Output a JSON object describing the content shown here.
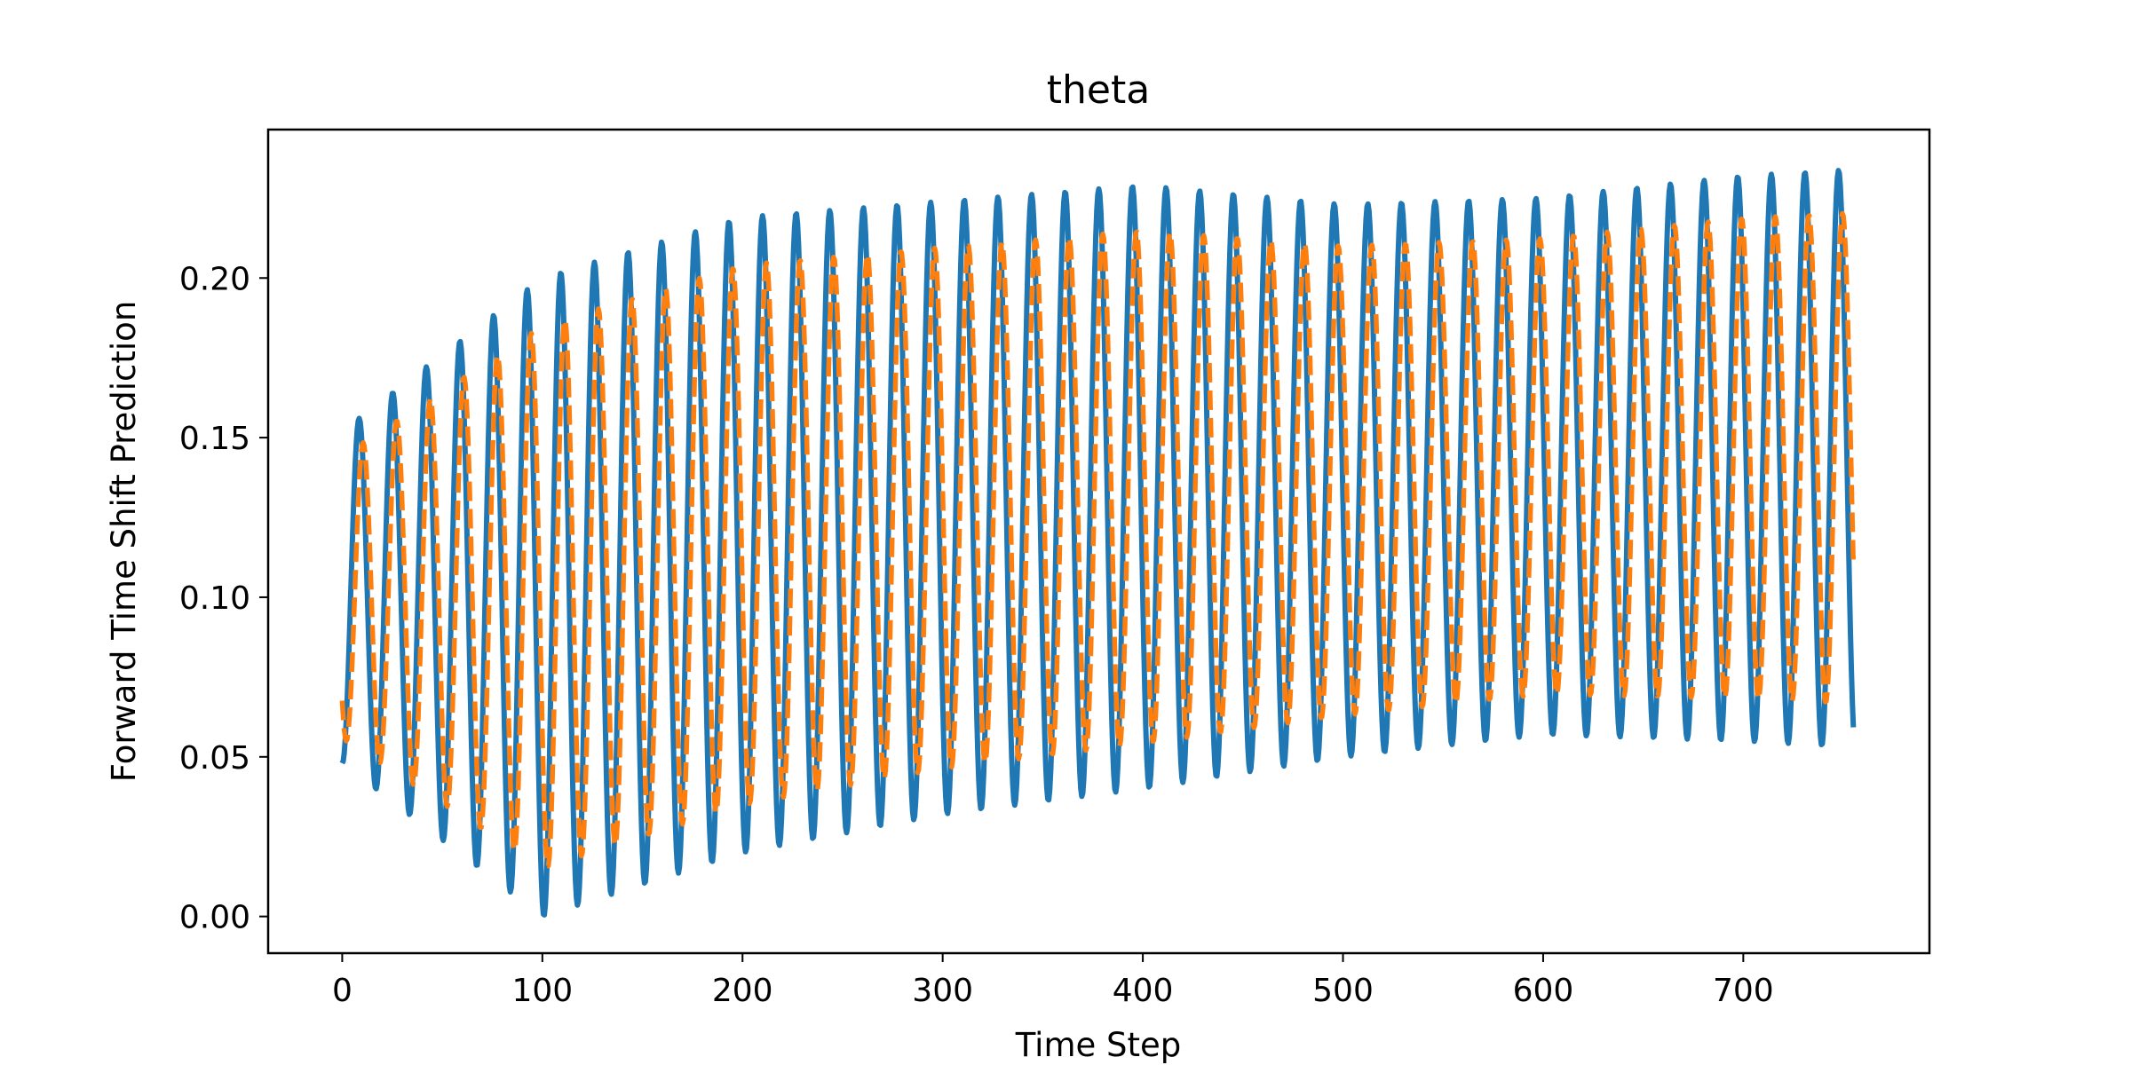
{
  "chart_data": {
    "type": "line",
    "title": "theta",
    "xlabel": "Time Step",
    "ylabel": "Forward Time Shift Prediction",
    "xlim": [
      -37,
      793
    ],
    "ylim": [
      -0.0115,
      0.2465
    ],
    "xticks": [
      0,
      100,
      200,
      300,
      400,
      500,
      600,
      700
    ],
    "xtick_labels": [
      "0",
      "100",
      "200",
      "300",
      "400",
      "500",
      "600",
      "700"
    ],
    "yticks": [
      0.0,
      0.05,
      0.1,
      0.15,
      0.2
    ],
    "ytick_labels": [
      "0.00",
      "0.05",
      "0.10",
      "0.15",
      "0.20"
    ],
    "grid": false,
    "legend": "none",
    "oscillation": {
      "period": 16.8,
      "x_start": 0,
      "x_end": 755,
      "cycles": [
        {
          "x": 0,
          "peak": 0.152,
          "trough": 0.048
        },
        {
          "x": 100,
          "peak": 0.2,
          "trough": 0.0
        },
        {
          "x": 200,
          "peak": 0.219,
          "trough": 0.02
        },
        {
          "x": 300,
          "peak": 0.224,
          "trough": 0.032
        },
        {
          "x": 400,
          "peak": 0.229,
          "trough": 0.04
        },
        {
          "x": 500,
          "peak": 0.223,
          "trough": 0.05
        },
        {
          "x": 600,
          "peak": 0.225,
          "trough": 0.057
        },
        {
          "x": 700,
          "peak": 0.232,
          "trough": 0.055
        },
        {
          "x": 755,
          "peak": 0.234,
          "trough": 0.053
        }
      ]
    },
    "series": [
      {
        "color": "#1f77b4",
        "style": "solid",
        "lag": 0,
        "amplitude_scale": 1.0
      },
      {
        "color": "#ff7f0e",
        "style": "dashed",
        "lag": 2,
        "amplitude_scale": 0.85
      }
    ]
  }
}
